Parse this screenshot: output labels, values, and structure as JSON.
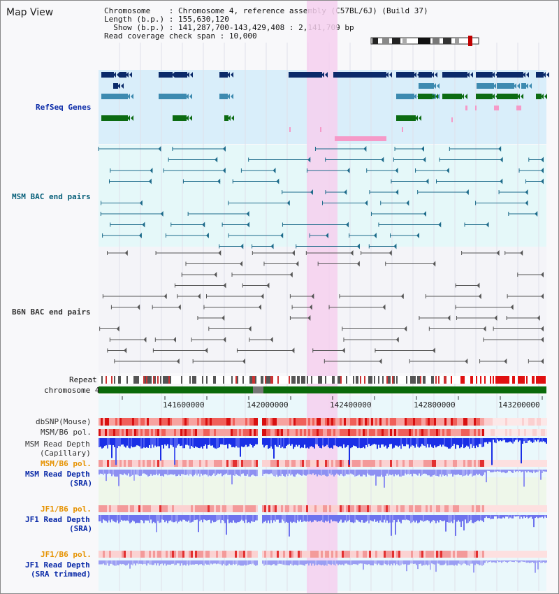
{
  "header": {
    "title": "Map View"
  },
  "info": {
    "chromosome_label": "Chromosome",
    "chromosome_value": "Chromosome 4, reference assembly (C57BL/6J) (Build 37)",
    "length_label": "Length (b.p.)",
    "length_value": "155,630,120",
    "show_label": "Show (b.p.)",
    "show_value": "141,287,700-143,429,408 : 2,141,709 bp",
    "coverage_label": "Read coverage check span",
    "coverage_value": "10,000"
  },
  "tracks": {
    "refseq": "RefSeq Genes",
    "msm_bac": "MSM BAC end pairs",
    "b6n_bac": "B6N BAC end pairs",
    "repeat": "Repeat",
    "chromosome": "chromosome 4",
    "dbsnp": "dbSNP(Mouse)",
    "msm_b6_pol": "MSM/B6 pol.",
    "msm_read_depth": "MSM Read Depth",
    "capillary": "(Capillary)",
    "msm_b6_pol2": "MSM/B6 pol.",
    "msm_read_depth2": "MSM Read Depth",
    "sra": "(SRA)",
    "jf1_b6_pol": "JF1/B6 pol.",
    "jf1_read_depth": "JF1 Read Depth",
    "sra2": "(SRA)",
    "jf1_b6_pol2": "JF1/B6 pol.",
    "jf1_read_depth2": "JF1 Read Depth",
    "sra_trimmed": "(SRA trimmed)"
  },
  "ruler": {
    "ticks": [
      "141600000",
      "142000000",
      "142400000",
      "142800000",
      "143200000"
    ]
  },
  "colors": {
    "refseq_bg": "#d9eefa",
    "bac_bg": "#e5f8f9",
    "highlight": "#f6d0ef",
    "gene_dark": "#0b2a6a",
    "gene_mid": "#3d8ab0",
    "gene_green": "#0c6b12",
    "pink": "#f59ac8",
    "chrom": "#0a6a0a"
  }
}
